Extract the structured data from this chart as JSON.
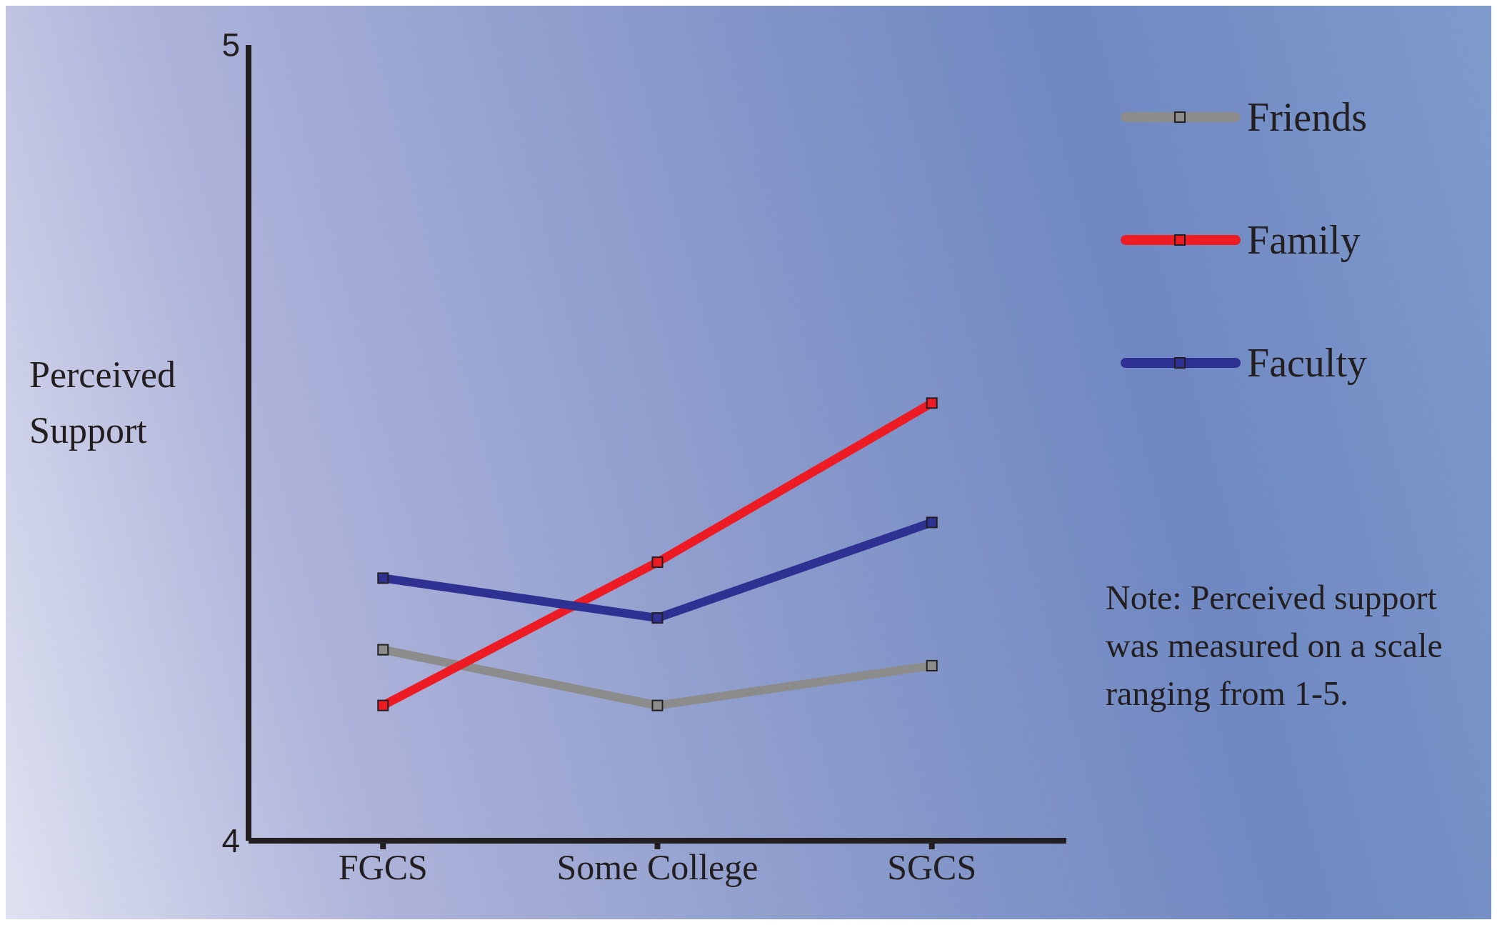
{
  "chart_data": {
    "type": "line",
    "categories": [
      "FGCS",
      "Some College",
      "SGCS"
    ],
    "ylabel": "Perceived Support",
    "ylim": [
      4,
      5
    ],
    "yticks": [
      4,
      5
    ],
    "series": [
      {
        "name": "Friends",
        "color": "#8c8c8c",
        "values": [
          4.24,
          4.17,
          4.22
        ]
      },
      {
        "name": "Family",
        "color": "#ed1c24",
        "values": [
          4.17,
          4.35,
          4.55
        ]
      },
      {
        "name": "Faculty",
        "color": "#2e3192",
        "values": [
          4.33,
          4.28,
          4.4
        ]
      }
    ],
    "marker": "square",
    "line_style": "solid",
    "grid": false,
    "legend": "top right",
    "annotations": [
      "Note: Perceived support was measured on a scale ranging from 1-5."
    ]
  }
}
